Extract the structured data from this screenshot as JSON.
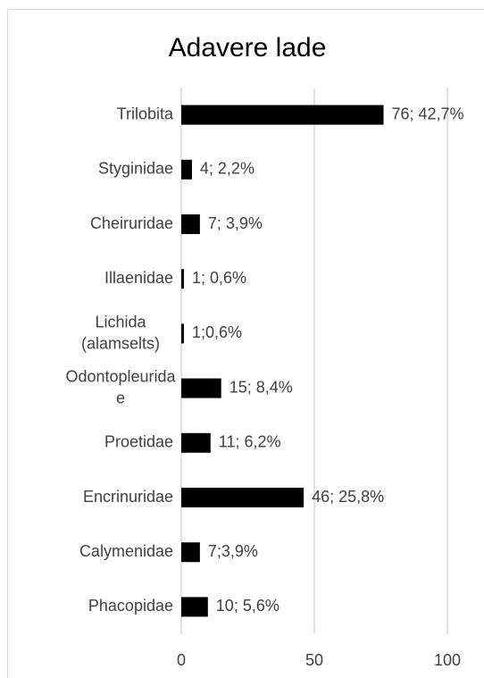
{
  "chart_data": {
    "type": "bar",
    "orientation": "horizontal",
    "title": "Adavere lade",
    "categories": [
      "Trilobita",
      "Styginidae",
      "Cheiruridae",
      "Illaenidae",
      "Lichida (alamselts)",
      "Odontopleuridae",
      "Proetidae",
      "Encrinuridae",
      "Calymenidae",
      "Phacopidae"
    ],
    "values": [
      76,
      4,
      7,
      1,
      1,
      15,
      11,
      46,
      7,
      10
    ],
    "value_labels": [
      "76; 42,7%",
      "4; 2,2%",
      "7; 3,9%",
      "1; 0,6%",
      "1;0,6%",
      "15; 8,4%",
      "11; 6,2%",
      "46; 25,8%",
      "7;3,9%",
      "10; 5,6%"
    ],
    "color": "#000000",
    "xlim": [
      0,
      100
    ],
    "xticks": [
      0,
      50,
      100
    ],
    "grid": true
  }
}
